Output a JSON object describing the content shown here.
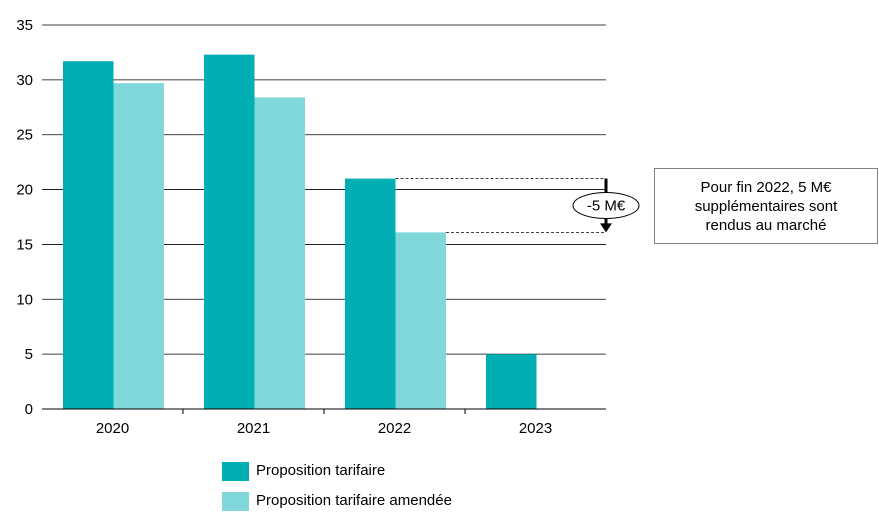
{
  "chart_data": {
    "type": "bar",
    "categories": [
      "2020",
      "2021",
      "2022",
      "2023"
    ],
    "series": [
      {
        "name": "Proposition tarifaire",
        "color": "#00aeb4",
        "values": [
          31.7,
          32.3,
          21.0,
          5.0
        ]
      },
      {
        "name": "Proposition tarifaire amendée",
        "color": "#80d8da",
        "values": [
          29.7,
          28.4,
          16.1,
          null
        ]
      }
    ],
    "yticks": [
      0,
      5,
      10,
      15,
      20,
      25,
      30,
      35
    ],
    "ylim": [
      0,
      35
    ],
    "grid": true,
    "legend_position": "bottom",
    "annotation": {
      "label": "-5 M€",
      "from": 21.0,
      "to": 16.1,
      "note_lines": [
        "Pour fin 2022, 5 M€",
        "supplémentaires sont",
        "rendus au marché"
      ]
    }
  }
}
